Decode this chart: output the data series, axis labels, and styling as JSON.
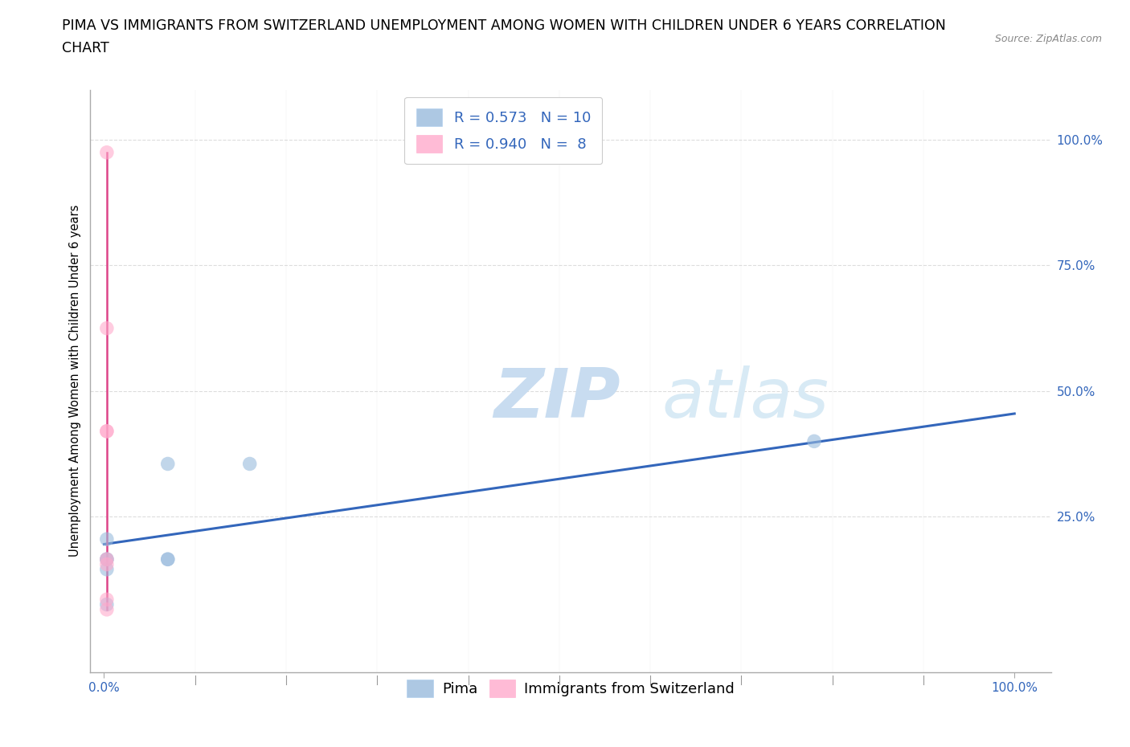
{
  "title_line1": "PIMA VS IMMIGRANTS FROM SWITZERLAND UNEMPLOYMENT AMONG WOMEN WITH CHILDREN UNDER 6 YEARS CORRELATION",
  "title_line2": "CHART",
  "source": "Source: ZipAtlas.com",
  "ylabel": "Unemployment Among Women with Children Under 6 years",
  "ytick_labels": [
    "100.0%",
    "75.0%",
    "50.0%",
    "25.0%"
  ],
  "ytick_values": [
    1.0,
    0.75,
    0.5,
    0.25
  ],
  "xtick_values": [
    0.0,
    1.0
  ],
  "xtick_labels": [
    "0.0%",
    "100.0%"
  ],
  "xlim": [
    -0.015,
    1.04
  ],
  "ylim": [
    -0.06,
    1.1
  ],
  "watermark_zip": "ZIP",
  "watermark_atlas": "atlas",
  "legend_label1": "R = 0.573   N = 10",
  "legend_label2": "R = 0.940   N =  8",
  "legend_labels_bottom": [
    "Pima",
    "Immigrants from Switzerland"
  ],
  "blue_color": "#99BBDD",
  "pink_color": "#FFAACC",
  "blue_line_color": "#3366BB",
  "pink_line_color": "#DD4488",
  "blue_points_x": [
    0.003,
    0.003,
    0.07,
    0.16,
    0.07,
    0.07,
    0.003,
    0.003,
    0.003,
    0.78
  ],
  "blue_points_y": [
    0.205,
    0.165,
    0.355,
    0.355,
    0.165,
    0.165,
    0.165,
    0.145,
    0.075,
    0.4
  ],
  "pink_points_x": [
    0.003,
    0.003,
    0.003,
    0.003,
    0.003,
    0.003,
    0.003,
    0.003
  ],
  "pink_points_y": [
    0.975,
    0.625,
    0.42,
    0.42,
    0.165,
    0.155,
    0.085,
    0.065
  ],
  "blue_trend_x": [
    0.0,
    1.0
  ],
  "blue_trend_y": [
    0.195,
    0.455
  ],
  "pink_trend_x": [
    0.003,
    0.003
  ],
  "pink_trend_y": [
    0.065,
    0.975
  ],
  "grid_color": "#DDDDDD",
  "background_color": "#FFFFFF",
  "title_fontsize": 12.5,
  "axis_label_fontsize": 10.5,
  "tick_fontsize": 11,
  "legend_fontsize": 13,
  "marker_size": 160
}
